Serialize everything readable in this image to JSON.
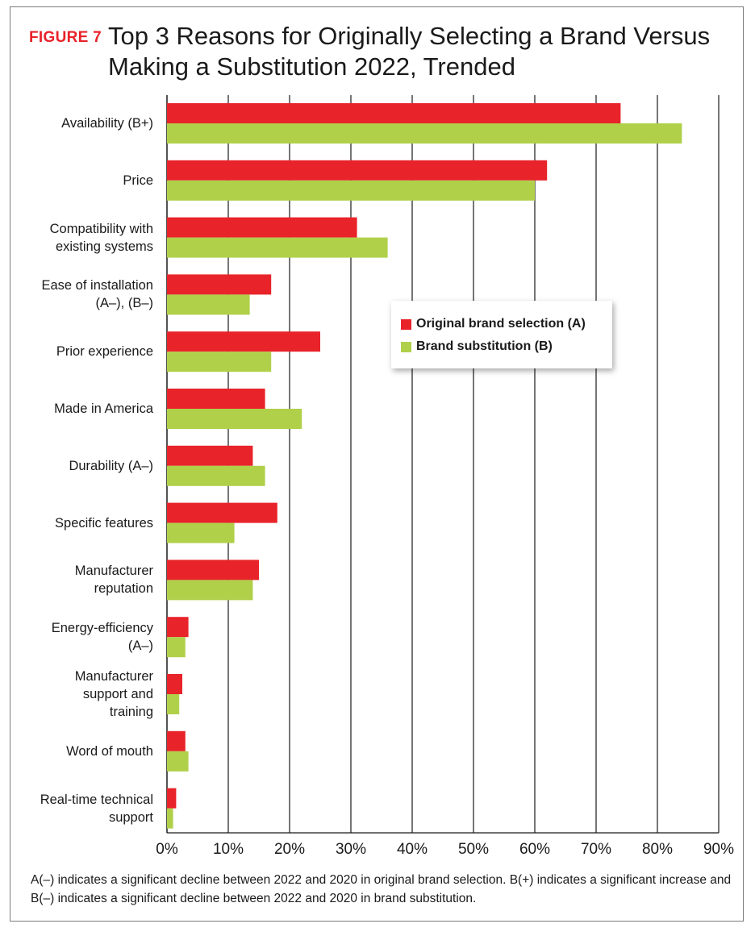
{
  "figure_label": "FIGURE 7",
  "chart_data": {
    "type": "bar",
    "orientation": "horizontal",
    "title": "Top 3 Reasons for Originally Selecting a Brand Versus Making a Substitution 2022, Trended",
    "categories": [
      "Availability (B+)",
      "Price",
      "Compatibility with\nexisting systems",
      "Ease of installation\n(A–), (B–)",
      "Prior experience",
      "Made in America",
      "Durability (A–)",
      "Specific features",
      "Manufacturer\nreputation",
      "Energy-efficiency\n(A–)",
      "Manufacturer\nsupport and\ntraining",
      "Word of mouth",
      "Real-time technical\nsupport"
    ],
    "series": [
      {
        "name": "Original brand selection (A)",
        "color": "#e8232a",
        "values": [
          74,
          62,
          31,
          17,
          25,
          16,
          14,
          18,
          15,
          3.5,
          2.5,
          3,
          1.5
        ]
      },
      {
        "name": "Brand substitution (B)",
        "color": "#b0d04a",
        "values": [
          84,
          60,
          36,
          13.5,
          17,
          22,
          16,
          11,
          14,
          3,
          2,
          3.5,
          1
        ]
      }
    ],
    "xlim": [
      0,
      90
    ],
    "xticks": [
      "0%",
      "10%",
      "20%",
      "30%",
      "40%",
      "50%",
      "60%",
      "70%",
      "80%",
      "90%"
    ],
    "grid": true,
    "legend_position": "center-right"
  },
  "footnote": "A(–) indicates a significant decline between 2022 and 2020 in original brand selection. B(+) indicates a significant increase and B(–) indicates a significant decline between 2022 and 2020 in brand substitution."
}
